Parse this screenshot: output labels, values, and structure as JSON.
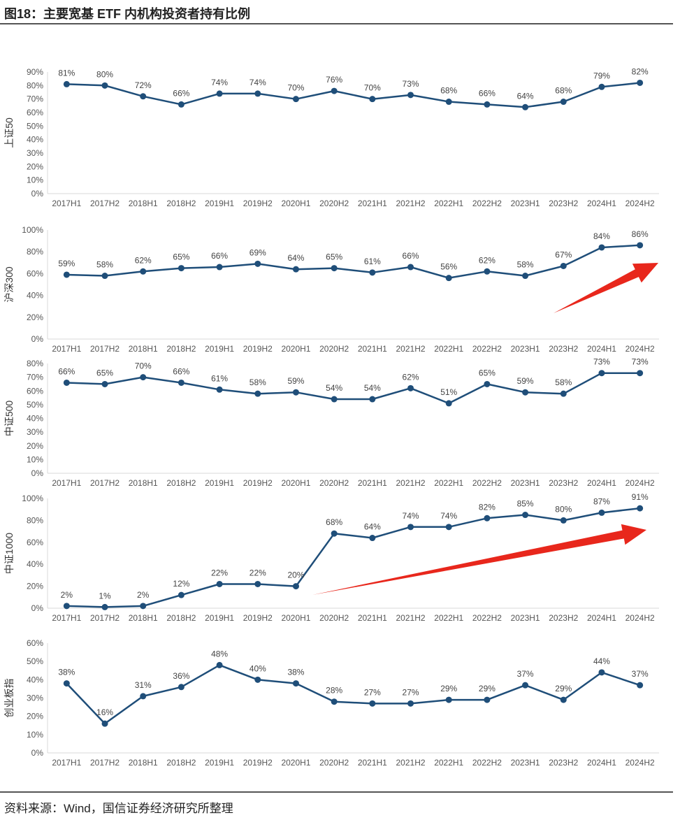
{
  "title": "图18：主要宽基 ETF 内机构投资者持有比例",
  "source": "资料来源：Wind，国信证券经济研究所整理",
  "colors": {
    "line": "#1f4e79",
    "marker": "#1f4e79",
    "arrow": "#e8271c",
    "axis": "#d9d9d9"
  },
  "chart_data": [
    {
      "type": "line",
      "ylabel": "上证50",
      "categories": [
        "2017H1",
        "2017H2",
        "2018H1",
        "2018H2",
        "2019H1",
        "2019H2",
        "2020H1",
        "2020H2",
        "2021H1",
        "2021H2",
        "2022H1",
        "2022H2",
        "2023H1",
        "2023H2",
        "2024H1",
        "2024H2"
      ],
      "values": [
        81,
        80,
        72,
        66,
        74,
        74,
        70,
        76,
        70,
        73,
        68,
        66,
        64,
        68,
        79,
        82
      ],
      "labels": [
        "81%",
        "80%",
        "72%",
        "66%",
        "74%",
        "74%",
        "70%",
        "76%",
        "70%",
        "73%",
        "68%",
        "66%",
        "64%",
        "68%",
        "79%",
        "82%"
      ],
      "yticks": [
        "0%",
        "10%",
        "20%",
        "30%",
        "40%",
        "50%",
        "60%",
        "70%",
        "80%",
        "90%"
      ],
      "ylim": [
        0,
        90
      ],
      "arrow": false
    },
    {
      "type": "line",
      "ylabel": "沪深300",
      "categories": [
        "2017H1",
        "2017H2",
        "2018H1",
        "2018H2",
        "2019H1",
        "2019H2",
        "2020H1",
        "2020H2",
        "2021H1",
        "2021H2",
        "2022H1",
        "2022H2",
        "2023H1",
        "2023H2",
        "2024H1",
        "2024H2"
      ],
      "values": [
        59,
        58,
        62,
        65,
        66,
        69,
        64,
        65,
        61,
        66,
        56,
        62,
        58,
        67,
        84,
        86
      ],
      "labels": [
        "59%",
        "58%",
        "62%",
        "65%",
        "66%",
        "69%",
        "64%",
        "65%",
        "61%",
        "66%",
        "56%",
        "62%",
        "58%",
        "67%",
        "84%",
        "86%"
      ],
      "yticks": [
        "0%",
        "20%",
        "40%",
        "60%",
        "80%",
        "100%"
      ],
      "ylim": [
        0,
        100
      ],
      "arrow": true
    },
    {
      "type": "line",
      "ylabel": "中证500",
      "categories": [
        "2017H1",
        "2017H2",
        "2018H1",
        "2018H2",
        "2019H1",
        "2019H2",
        "2020H1",
        "2020H2",
        "2021H1",
        "2021H2",
        "2022H1",
        "2022H2",
        "2023H1",
        "2023H2",
        "2024H1",
        "2024H2"
      ],
      "values": [
        66,
        65,
        70,
        66,
        61,
        58,
        59,
        54,
        54,
        62,
        51,
        65,
        59,
        58,
        73,
        73
      ],
      "labels": [
        "66%",
        "65%",
        "70%",
        "66%",
        "61%",
        "58%",
        "59%",
        "54%",
        "54%",
        "62%",
        "51%",
        "65%",
        "59%",
        "58%",
        "73%",
        "73%"
      ],
      "yticks": [
        "0%",
        "10%",
        "20%",
        "30%",
        "40%",
        "50%",
        "60%",
        "70%",
        "80%"
      ],
      "ylim": [
        0,
        80
      ],
      "arrow": false
    },
    {
      "type": "line",
      "ylabel": "中证1000",
      "categories": [
        "2017H1",
        "2017H2",
        "2018H1",
        "2018H2",
        "2019H1",
        "2019H2",
        "2020H1",
        "2020H2",
        "2021H1",
        "2021H2",
        "2022H1",
        "2022H2",
        "2023H1",
        "2023H2",
        "2024H1",
        "2024H2"
      ],
      "values": [
        2,
        1,
        2,
        12,
        22,
        22,
        20,
        68,
        64,
        74,
        74,
        82,
        85,
        80,
        87,
        91
      ],
      "labels": [
        "2%",
        "1%",
        "2%",
        "12%",
        "22%",
        "22%",
        "20%",
        "68%",
        "64%",
        "74%",
        "74%",
        "82%",
        "85%",
        "80%",
        "87%",
        "91%"
      ],
      "yticks": [
        "0%",
        "20%",
        "40%",
        "60%",
        "80%",
        "100%"
      ],
      "ylim": [
        0,
        100
      ],
      "arrow": true
    },
    {
      "type": "line",
      "ylabel": "创业板指",
      "categories": [
        "2017H1",
        "2017H2",
        "2018H1",
        "2018H2",
        "2019H1",
        "2019H2",
        "2020H1",
        "2020H2",
        "2021H1",
        "2021H2",
        "2022H1",
        "2022H2",
        "2023H1",
        "2023H2",
        "2024H1",
        "2024H2"
      ],
      "values": [
        38,
        16,
        31,
        36,
        48,
        40,
        38,
        28,
        27,
        27,
        29,
        29,
        37,
        29,
        44,
        37
      ],
      "labels": [
        "38%",
        "16%",
        "31%",
        "36%",
        "48%",
        "40%",
        "38%",
        "28%",
        "27%",
        "27%",
        "29%",
        "29%",
        "37%",
        "29%",
        "44%",
        "37%"
      ],
      "yticks": [
        "0%",
        "10%",
        "20%",
        "30%",
        "40%",
        "50%",
        "60%"
      ],
      "ylim": [
        0,
        60
      ],
      "arrow": false
    }
  ]
}
